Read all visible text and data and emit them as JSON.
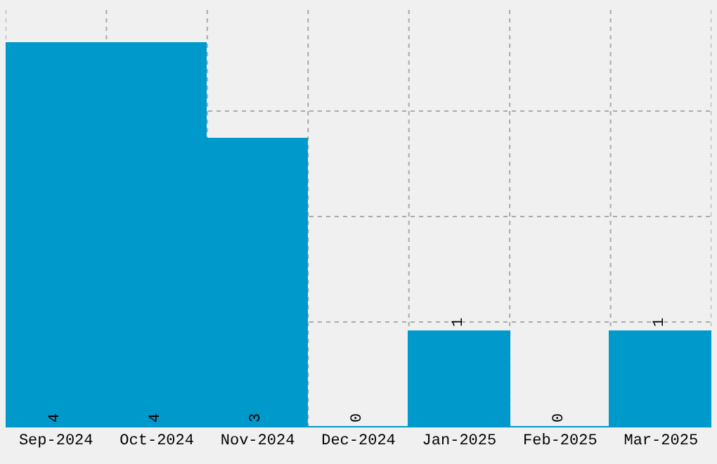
{
  "chart_data": {
    "type": "bar",
    "categories": [
      "Sep-2024",
      "Oct-2024",
      "Nov-2024",
      "Dec-2024",
      "Jan-2025",
      "Feb-2025",
      "Mar-2025"
    ],
    "values": [
      4,
      4,
      3,
      0,
      1,
      0,
      1
    ],
    "color": "#0099cc",
    "ylim": [
      0,
      4.4
    ],
    "yticks": [
      {
        "value": 1.1,
        "label": null
      },
      {
        "value": 2.2,
        "label": null
      },
      {
        "value": 3.3,
        "label": null
      }
    ],
    "tick_labels": "x",
    "grid": true,
    "data_labels": true
  }
}
